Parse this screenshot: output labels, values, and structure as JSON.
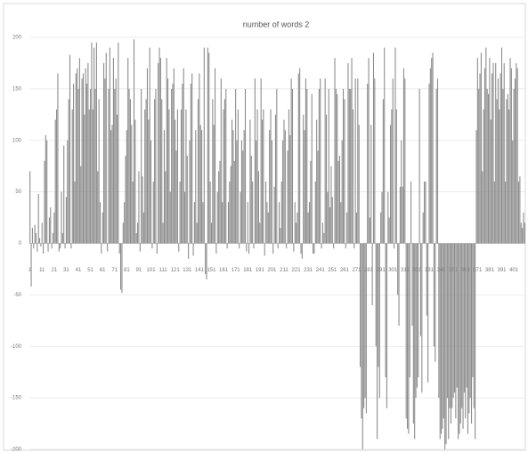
{
  "chart_data": {
    "type": "bar",
    "title": "number of words 2",
    "color": "#8c8c8c",
    "grid": true,
    "ylim": [
      -200,
      200
    ],
    "yticks": [
      -200,
      -150,
      -100,
      -50,
      0,
      50,
      100,
      150,
      200
    ],
    "categories": [
      "1",
      null,
      null,
      null,
      null,
      null,
      null,
      null,
      null,
      null,
      "11",
      null,
      null,
      null,
      null,
      null,
      null,
      null,
      null,
      null,
      "21",
      null,
      null,
      null,
      null,
      null,
      null,
      null,
      null,
      null,
      "31",
      null,
      null,
      null,
      null,
      null,
      null,
      null,
      null,
      null,
      "41",
      null,
      null,
      null,
      null,
      null,
      null,
      null,
      null,
      null,
      "51",
      null,
      null,
      null,
      null,
      null,
      null,
      null,
      null,
      null,
      "61",
      null,
      null,
      null,
      null,
      null,
      null,
      null,
      null,
      null,
      "71",
      null,
      null,
      null,
      null,
      null,
      null,
      null,
      null,
      null,
      "81",
      null,
      null,
      null,
      null,
      null,
      null,
      null,
      null,
      null,
      "91",
      null,
      null,
      null,
      null,
      null,
      null,
      null,
      null,
      null,
      "101",
      null,
      null,
      null,
      null,
      null,
      null,
      null,
      null,
      null,
      "111",
      null,
      null,
      null,
      null,
      null,
      null,
      null,
      null,
      null,
      "121",
      null,
      null,
      null,
      null,
      null,
      null,
      null,
      null,
      null,
      "131",
      null,
      null,
      null,
      null,
      null,
      null,
      null,
      null,
      null,
      "141",
      null,
      null,
      null,
      null,
      null,
      null,
      null,
      null,
      null,
      "151",
      null,
      null,
      null,
      null,
      null,
      null,
      null,
      null,
      null,
      "161",
      null,
      null,
      null,
      null,
      null,
      null,
      null,
      null,
      null,
      "171",
      null,
      null,
      null,
      null,
      null,
      null,
      null,
      null,
      null,
      "181",
      null,
      null,
      null,
      null,
      null,
      null,
      null,
      null,
      null,
      "191",
      null,
      null,
      null,
      null,
      null,
      null,
      null,
      null,
      null,
      "201",
      null,
      null,
      null,
      null,
      null,
      null,
      null,
      null,
      null,
      "211",
      null,
      null,
      null,
      null,
      null,
      null,
      null,
      null,
      null,
      "221",
      null,
      null,
      null,
      null,
      null,
      null,
      null,
      null,
      null,
      "231",
      null,
      null,
      null,
      null,
      null,
      null,
      null,
      null,
      null,
      "241",
      null,
      null,
      null,
      null,
      null,
      null,
      null,
      null,
      null,
      "251",
      null,
      null,
      null,
      null,
      null,
      null,
      null,
      null,
      null,
      "261",
      null,
      null,
      null,
      null,
      null,
      null,
      null,
      null,
      null,
      "271",
      null,
      null,
      null,
      null,
      null,
      null,
      null,
      null,
      null,
      "281",
      null,
      null,
      null,
      null,
      null,
      null,
      null,
      null,
      null,
      "291",
      null,
      null,
      null,
      null,
      null,
      null,
      null,
      null,
      null,
      "301",
      null,
      null,
      null,
      null,
      null,
      null,
      null,
      null,
      null,
      "311",
      null,
      null,
      null,
      null,
      null,
      null,
      null,
      null,
      null,
      "321",
      null,
      null,
      null,
      null,
      null,
      null,
      null,
      null,
      null,
      "331",
      null,
      null,
      null,
      null,
      null,
      null,
      null,
      null,
      null,
      "341",
      null,
      null,
      null,
      null,
      null,
      null,
      null,
      null,
      null,
      "351",
      null,
      null,
      null,
      null,
      null,
      null,
      null,
      null,
      null,
      "361",
      null,
      null,
      null,
      null,
      null,
      null,
      null,
      null,
      null,
      "371",
      null,
      null,
      null,
      null,
      null,
      null,
      null,
      null,
      null,
      "381",
      null,
      null,
      null,
      null,
      null,
      null,
      null,
      null,
      null,
      "391",
      null,
      null,
      null,
      null,
      null,
      null,
      null,
      null,
      null,
      "401",
      null,
      null,
      null,
      null,
      null,
      null,
      null,
      null,
      null
    ],
    "values": [
      70,
      -42,
      15,
      -5,
      18,
      10,
      -8,
      48,
      5,
      -3,
      20,
      -10,
      80,
      105,
      100,
      -8,
      25,
      35,
      -5,
      10,
      30,
      120,
      130,
      165,
      -8,
      -5,
      50,
      10,
      95,
      -5,
      45,
      100,
      140,
      183,
      -5,
      130,
      155,
      60,
      165,
      170,
      150,
      180,
      75,
      160,
      165,
      125,
      170,
      155,
      175,
      130,
      150,
      195,
      130,
      190,
      150,
      195,
      70,
      140,
      40,
      -10,
      30,
      175,
      160,
      185,
      -8,
      150,
      190,
      110,
      115,
      180,
      150,
      160,
      125,
      195,
      -10,
      -45,
      -48,
      20,
      40,
      85,
      110,
      180,
      150,
      140,
      115,
      60,
      198,
      120,
      10,
      20,
      70,
      -8,
      150,
      65,
      30,
      130,
      140,
      170,
      120,
      190,
      100,
      -5,
      60,
      140,
      150,
      -10,
      175,
      190,
      180,
      140,
      20,
      110,
      70,
      180,
      160,
      130,
      50,
      150,
      155,
      170,
      120,
      90,
      130,
      -8,
      60,
      130,
      155,
      170,
      50,
      130,
      85,
      -15,
      100,
      155,
      165,
      -12,
      40,
      110,
      20,
      140,
      165,
      115,
      110,
      40,
      190,
      -30,
      -35,
      190,
      185,
      60,
      20,
      140,
      115,
      170,
      -10,
      50,
      70,
      80,
      160,
      40,
      130,
      140,
      150,
      -5,
      40,
      60,
      75,
      120,
      110,
      80,
      150,
      100,
      130,
      -5,
      50,
      100,
      90,
      110,
      150,
      -8,
      40,
      -10,
      120,
      85,
      60,
      -5,
      160,
      100,
      130,
      70,
      20,
      160,
      120,
      130,
      -12,
      60,
      40,
      30,
      110,
      130,
      100,
      -10,
      55,
      125,
      150,
      -5,
      40,
      15,
      60,
      100,
      120,
      110,
      -5,
      90,
      130,
      105,
      160,
      150,
      -8,
      40,
      20,
      30,
      165,
      170,
      -10,
      -15,
      125,
      110,
      160,
      150,
      30,
      40,
      80,
      145,
      -10,
      -10,
      60,
      120,
      90,
      150,
      160,
      -5,
      20,
      10,
      160,
      125,
      50,
      150,
      35,
      75,
      45,
      -5,
      180,
      150,
      145,
      80,
      85,
      40,
      100,
      150,
      140,
      -5,
      30,
      175,
      150,
      150,
      180,
      130,
      -5,
      160,
      30,
      160,
      115,
      -120,
      -170,
      -200,
      -160,
      -150,
      -165,
      155,
      180,
      25,
      115,
      -60,
      185,
      160,
      -100,
      -190,
      -120,
      -150,
      30,
      50,
      140,
      190,
      -130,
      -160,
      50,
      25,
      115,
      130,
      160,
      -5,
      190,
      130,
      -50,
      -80,
      55,
      100,
      55,
      170,
      160,
      -170,
      -180,
      -185,
      -130,
      60,
      -80,
      -175,
      -190,
      -150,
      -140,
      -130,
      150,
      -90,
      -145,
      30,
      60,
      60,
      -70,
      -135,
      155,
      170,
      180,
      185,
      -100,
      -115,
      150,
      160,
      -150,
      -190,
      -185,
      -180,
      -170,
      -200,
      -195,
      -150,
      -190,
      -160,
      -175,
      -160,
      -150,
      -145,
      -170,
      -140,
      -190,
      -185,
      -175,
      -160,
      -180,
      -145,
      -170,
      -140,
      -185,
      -165,
      -150,
      -175,
      -130,
      -160,
      -190,
      110,
      180,
      150,
      165,
      185,
      70,
      130,
      170,
      190,
      150,
      145,
      180,
      120,
      165,
      175,
      60,
      175,
      140,
      160,
      130,
      165,
      190,
      150,
      175,
      60,
      140,
      145,
      130,
      180,
      170,
      100,
      150,
      160,
      175,
      170,
      60,
      65,
      20,
      15,
      30,
      20
    ]
  }
}
